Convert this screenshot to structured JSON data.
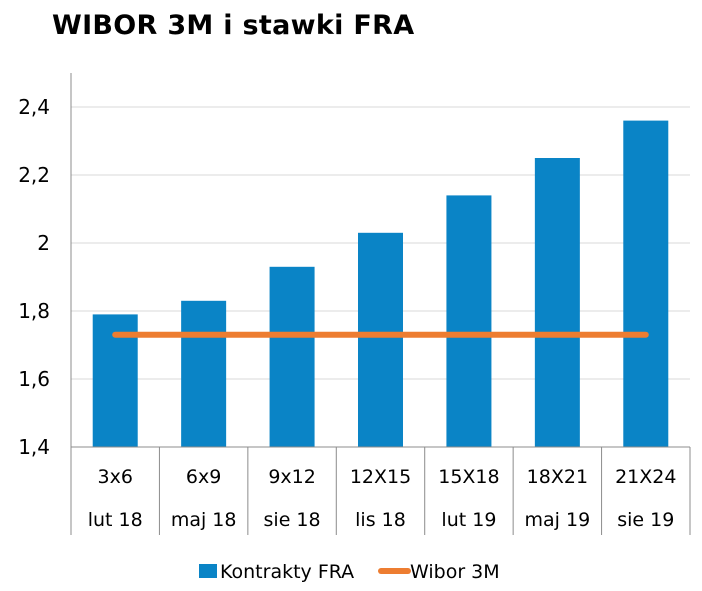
{
  "chart_data": {
    "type": "bar",
    "title": "WIBOR 3M i stawki FRA",
    "categories": [
      "3x6",
      "6x9",
      "9x12",
      "12X15",
      "15X18",
      "18X21",
      "21X24"
    ],
    "category_dates": [
      "lut 18",
      "maj 18",
      "sie 18",
      "lis 18",
      "lut 19",
      "maj 19",
      "sie 19"
    ],
    "series": [
      {
        "name": "Kontrakty FRA",
        "kind": "bar",
        "color": "#0a84c6",
        "values": [
          1.79,
          1.83,
          1.93,
          2.03,
          2.14,
          2.25,
          2.36
        ]
      },
      {
        "name": "Wibor 3M",
        "kind": "line",
        "color": "#ed7d31",
        "values": [
          1.73,
          1.73,
          1.73,
          1.73,
          1.73,
          1.73,
          1.73
        ]
      }
    ],
    "yticks": [
      "1,4",
      "1,6",
      "1,8",
      "2",
      "2,2",
      "2,4"
    ],
    "ylim": [
      1.4,
      2.5
    ],
    "grid": true,
    "legend": "bottom"
  }
}
